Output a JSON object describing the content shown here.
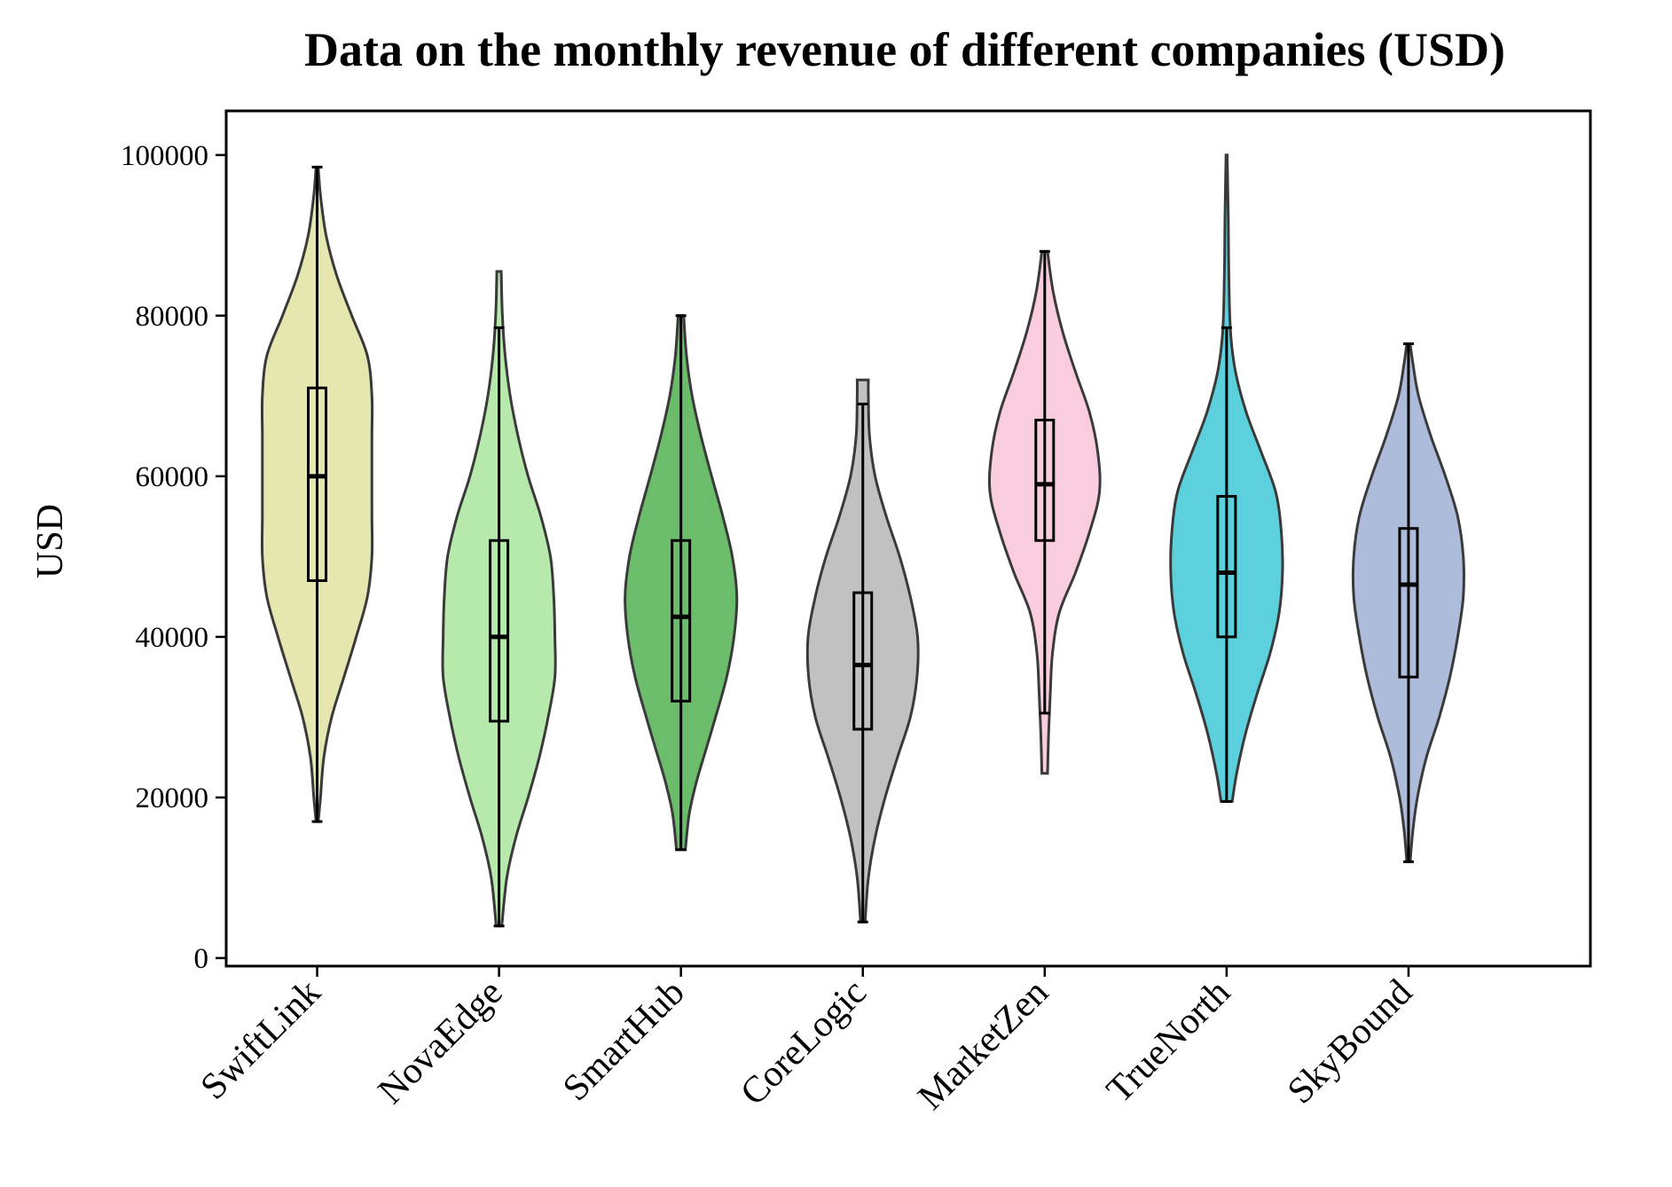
{
  "chart_data": {
    "type": "violin",
    "title": "Data on the monthly revenue of different companies (USD)",
    "xlabel": "",
    "ylabel": "USD",
    "ylim": [
      -1000,
      105500
    ],
    "yticks": [
      0,
      20000,
      40000,
      60000,
      80000,
      100000
    ],
    "ytick_labels": [
      "0",
      "20000",
      "40000",
      "60000",
      "80000",
      "100000"
    ],
    "grid": false,
    "legend": "none",
    "categories": [
      "SwiftLink",
      "NovaEdge",
      "SmartHub",
      "CoreLogic",
      "MarketZen",
      "TrueNorth",
      "SkyBound"
    ],
    "series": [
      {
        "category": "SwiftLink",
        "color": "#dbdb8d",
        "stats": {
          "min": 17000,
          "q1": 47000,
          "median": 60000,
          "q3": 71000,
          "max": 98500
        },
        "violin_extent": [
          17000,
          98500
        ],
        "density_profile": [
          {
            "y": 17000,
            "w": 0.02
          },
          {
            "y": 20000,
            "w": 0.06
          },
          {
            "y": 25000,
            "w": 0.12
          },
          {
            "y": 30000,
            "w": 0.26
          },
          {
            "y": 35000,
            "w": 0.48
          },
          {
            "y": 40000,
            "w": 0.7
          },
          {
            "y": 45000,
            "w": 0.9
          },
          {
            "y": 50000,
            "w": 0.98
          },
          {
            "y": 55000,
            "w": 0.98
          },
          {
            "y": 60000,
            "w": 0.98
          },
          {
            "y": 65000,
            "w": 0.98
          },
          {
            "y": 70000,
            "w": 0.98
          },
          {
            "y": 75000,
            "w": 0.9
          },
          {
            "y": 80000,
            "w": 0.62
          },
          {
            "y": 85000,
            "w": 0.35
          },
          {
            "y": 90000,
            "w": 0.16
          },
          {
            "y": 95000,
            "w": 0.06
          },
          {
            "y": 98500,
            "w": 0.02
          }
        ]
      },
      {
        "category": "NovaEdge",
        "color": "#98df8a",
        "stats": {
          "min": 4000,
          "q1": 29500,
          "median": 40000,
          "q3": 52000,
          "max": 78500
        },
        "violin_extent": [
          4000,
          85500
        ],
        "density_profile": [
          {
            "y": 4000,
            "w": 0.05
          },
          {
            "y": 10000,
            "w": 0.14
          },
          {
            "y": 15000,
            "w": 0.3
          },
          {
            "y": 20000,
            "w": 0.52
          },
          {
            "y": 25000,
            "w": 0.72
          },
          {
            "y": 30000,
            "w": 0.88
          },
          {
            "y": 35000,
            "w": 1.0
          },
          {
            "y": 40000,
            "w": 1.0
          },
          {
            "y": 45000,
            "w": 0.98
          },
          {
            "y": 50000,
            "w": 0.92
          },
          {
            "y": 55000,
            "w": 0.75
          },
          {
            "y": 60000,
            "w": 0.52
          },
          {
            "y": 65000,
            "w": 0.34
          },
          {
            "y": 70000,
            "w": 0.2
          },
          {
            "y": 75000,
            "w": 0.11
          },
          {
            "y": 80000,
            "w": 0.06
          },
          {
            "y": 85500,
            "w": 0.04
          }
        ]
      },
      {
        "category": "SmartHub",
        "color": "#2ca02c",
        "stats": {
          "min": 13500,
          "q1": 32000,
          "median": 42500,
          "q3": 52000,
          "max": 80000
        },
        "violin_extent": [
          13500,
          80000
        ],
        "density_profile": [
          {
            "y": 13500,
            "w": 0.08
          },
          {
            "y": 18000,
            "w": 0.15
          },
          {
            "y": 22000,
            "w": 0.28
          },
          {
            "y": 26000,
            "w": 0.45
          },
          {
            "y": 30000,
            "w": 0.62
          },
          {
            "y": 35000,
            "w": 0.82
          },
          {
            "y": 40000,
            "w": 0.95
          },
          {
            "y": 45000,
            "w": 1.0
          },
          {
            "y": 50000,
            "w": 0.92
          },
          {
            "y": 55000,
            "w": 0.75
          },
          {
            "y": 60000,
            "w": 0.55
          },
          {
            "y": 65000,
            "w": 0.36
          },
          {
            "y": 70000,
            "w": 0.2
          },
          {
            "y": 75000,
            "w": 0.1
          },
          {
            "y": 80000,
            "w": 0.05
          }
        ]
      },
      {
        "category": "CoreLogic",
        "color": "#a6a6a6",
        "stats": {
          "min": 4500,
          "q1": 28500,
          "median": 36500,
          "q3": 45500,
          "max": 69000
        },
        "violin_extent": [
          4500,
          72000
        ],
        "density_profile": [
          {
            "y": 4500,
            "w": 0.04
          },
          {
            "y": 10000,
            "w": 0.1
          },
          {
            "y": 15000,
            "w": 0.22
          },
          {
            "y": 20000,
            "w": 0.4
          },
          {
            "y": 25000,
            "w": 0.62
          },
          {
            "y": 30000,
            "w": 0.85
          },
          {
            "y": 35000,
            "w": 0.97
          },
          {
            "y": 40000,
            "w": 0.98
          },
          {
            "y": 45000,
            "w": 0.85
          },
          {
            "y": 50000,
            "w": 0.66
          },
          {
            "y": 55000,
            "w": 0.42
          },
          {
            "y": 60000,
            "w": 0.22
          },
          {
            "y": 65000,
            "w": 0.12
          },
          {
            "y": 70000,
            "w": 0.1
          },
          {
            "y": 72000,
            "w": 0.1
          }
        ]
      },
      {
        "category": "MarketZen",
        "color": "#f7b6d2",
        "stats": {
          "min": 30500,
          "q1": 52000,
          "median": 59000,
          "q3": 67000,
          "max": 88000
        },
        "violin_extent": [
          23000,
          88000
        ],
        "density_profile": [
          {
            "y": 23000,
            "w": 0.05
          },
          {
            "y": 28000,
            "w": 0.07
          },
          {
            "y": 33000,
            "w": 0.1
          },
          {
            "y": 38000,
            "w": 0.14
          },
          {
            "y": 43000,
            "w": 0.26
          },
          {
            "y": 48000,
            "w": 0.55
          },
          {
            "y": 53000,
            "w": 0.8
          },
          {
            "y": 58000,
            "w": 0.98
          },
          {
            "y": 63000,
            "w": 0.95
          },
          {
            "y": 68000,
            "w": 0.8
          },
          {
            "y": 73000,
            "w": 0.55
          },
          {
            "y": 78000,
            "w": 0.32
          },
          {
            "y": 83000,
            "w": 0.15
          },
          {
            "y": 88000,
            "w": 0.05
          }
        ]
      },
      {
        "category": "TrueNorth",
        "color": "#17becf",
        "stats": {
          "min": 19500,
          "q1": 40000,
          "median": 48000,
          "q3": 57500,
          "max": 78500
        },
        "violin_extent": [
          19500,
          100000
        ],
        "density_profile": [
          {
            "y": 19500,
            "w": 0.1
          },
          {
            "y": 23000,
            "w": 0.18
          },
          {
            "y": 28000,
            "w": 0.34
          },
          {
            "y": 33000,
            "w": 0.55
          },
          {
            "y": 38000,
            "w": 0.78
          },
          {
            "y": 43000,
            "w": 0.94
          },
          {
            "y": 48000,
            "w": 1.0
          },
          {
            "y": 53000,
            "w": 0.98
          },
          {
            "y": 58000,
            "w": 0.88
          },
          {
            "y": 63000,
            "w": 0.62
          },
          {
            "y": 68000,
            "w": 0.35
          },
          {
            "y": 73000,
            "w": 0.16
          },
          {
            "y": 78000,
            "w": 0.07
          },
          {
            "y": 85000,
            "w": 0.04
          },
          {
            "y": 92000,
            "w": 0.03
          },
          {
            "y": 100000,
            "w": 0.01
          }
        ]
      },
      {
        "category": "SkyBound",
        "color": "#8c9fcc",
        "stats": {
          "min": 12000,
          "q1": 35000,
          "median": 46500,
          "q3": 53500,
          "max": 76500
        },
        "violin_extent": [
          12000,
          76500
        ],
        "density_profile": [
          {
            "y": 12000,
            "w": 0.03
          },
          {
            "y": 16000,
            "w": 0.08
          },
          {
            "y": 20000,
            "w": 0.16
          },
          {
            "y": 25000,
            "w": 0.32
          },
          {
            "y": 30000,
            "w": 0.55
          },
          {
            "y": 35000,
            "w": 0.74
          },
          {
            "y": 40000,
            "w": 0.88
          },
          {
            "y": 45000,
            "w": 0.98
          },
          {
            "y": 50000,
            "w": 0.98
          },
          {
            "y": 55000,
            "w": 0.88
          },
          {
            "y": 60000,
            "w": 0.66
          },
          {
            "y": 65000,
            "w": 0.4
          },
          {
            "y": 70000,
            "w": 0.18
          },
          {
            "y": 74000,
            "w": 0.08
          },
          {
            "y": 76500,
            "w": 0.03
          }
        ]
      }
    ]
  }
}
